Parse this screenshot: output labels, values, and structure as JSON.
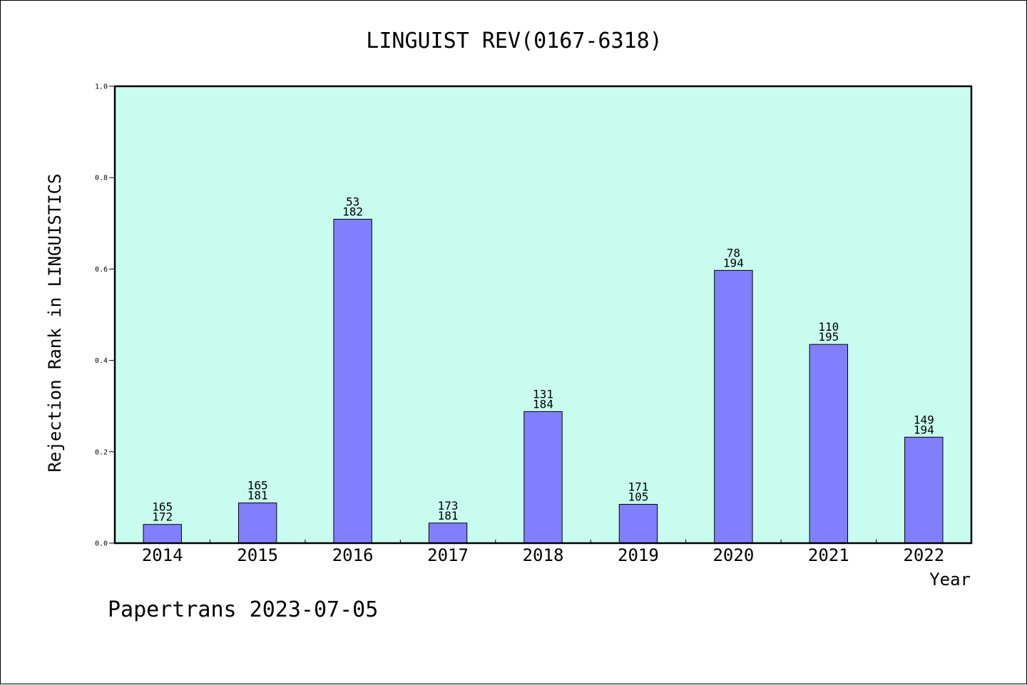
{
  "chart_data": {
    "type": "bar",
    "title": "LINGUIST REV(0167-6318)",
    "xlabel": "Year",
    "ylabel": "Rejection Rank in LINGUISTICS",
    "ylim": [
      0,
      1.0
    ],
    "yticks": [
      "0.0",
      "0.2",
      "0.4",
      "0.6",
      "0.8",
      "1.0"
    ],
    "categories": [
      "2014",
      "2015",
      "2016",
      "2017",
      "2018",
      "2019",
      "2020",
      "2021",
      "2022"
    ],
    "values": [
      0.041,
      0.088,
      0.709,
      0.044,
      0.288,
      0.085,
      0.597,
      0.435,
      0.232
    ],
    "labels_top": [
      "165",
      "165",
      "53",
      "173",
      "131",
      "171",
      "78",
      "110",
      "149"
    ],
    "labels_bottom": [
      "172",
      "181",
      "182",
      "181",
      "184",
      "105",
      "194",
      "195",
      "194"
    ],
    "colors": {
      "plot_bg": "#c8fcee",
      "bar": "#8080ff"
    },
    "grid": false,
    "legend": "none"
  },
  "footer": "Papertrans 2023-07-05"
}
